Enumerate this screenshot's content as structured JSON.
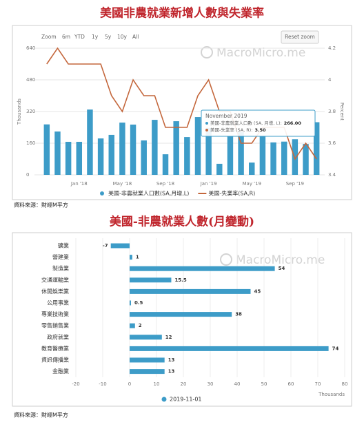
{
  "chart_data": [
    {
      "type": "combo",
      "title": "美國非農就業新增人數與失業率",
      "zoom_buttons": [
        "Zoom",
        "6m",
        "YTD",
        "1y",
        "5y",
        "10y",
        "All"
      ],
      "reset_button": "Reset zoom",
      "watermark": "MacroMicro.me",
      "categories": [
        null,
        null,
        null,
        "Jan '18",
        null,
        null,
        null,
        "May '18",
        null,
        null,
        null,
        "Sep '18",
        null,
        null,
        null,
        "Jan '19",
        null,
        null,
        null,
        "May '19",
        null,
        null,
        null,
        "Sep '19",
        null,
        null
      ],
      "ylabel": "Thousands",
      "y2label": "Percent",
      "ylim": [
        0,
        640
      ],
      "yticks": [
        0,
        160,
        320,
        480,
        640
      ],
      "y2lim": [
        3.4,
        4.2
      ],
      "y2ticks": [
        3.4,
        3.6,
        3.8,
        4,
        4.2
      ],
      "series": [
        {
          "name": "美國-非農就業人口數(SA,月增,L)",
          "type": "bar",
          "color": "#3d9cc8",
          "values": [
            255,
            219,
            167,
            167,
            330,
            184,
            202,
            264,
            254,
            174,
            278,
            104,
            271,
            191,
            292,
            237,
            56,
            196,
            216,
            62,
            193,
            164,
            168,
            180,
            156,
            266
          ]
        },
        {
          "name": "美國-失業率(SA,R)",
          "type": "line",
          "axis": "y2",
          "color": "#c4673c",
          "values": [
            4.1,
            4.2,
            4.1,
            4.1,
            4.1,
            4.1,
            3.9,
            3.8,
            4.0,
            3.9,
            3.9,
            3.7,
            3.7,
            3.7,
            3.9,
            4.0,
            3.8,
            3.8,
            3.6,
            3.6,
            3.7,
            3.7,
            3.7,
            3.5,
            3.6,
            3.5
          ]
        }
      ],
      "tooltip": {
        "title": "November 2019",
        "lines": [
          {
            "label": "美國-非農就業人口數 (SA, 月增, L):",
            "value": "266.00"
          },
          {
            "label": "美國-失業率 (SA, R):",
            "value": "3.50"
          }
        ]
      },
      "source": "資料來源：財經M平方"
    },
    {
      "type": "barh",
      "title": "美國-非農就業人數(月變動)",
      "watermark": "MacroMicro.me",
      "categories": [
        "礦業",
        "營建業",
        "製造業",
        "交通運輸業",
        "休閒娛樂業",
        "公用事業",
        "專業技術業",
        "零售銷售業",
        "政府就業",
        "教育醫療業",
        "資訊傳播業",
        "金融業"
      ],
      "values": [
        -7,
        1,
        54,
        15.5,
        45,
        0.5,
        38,
        2,
        12,
        74,
        13,
        13
      ],
      "color": "#3d9cc8",
      "series_name": "2019-11-01",
      "xlabel": "Thousands",
      "xlim": [
        -20,
        80
      ],
      "xticks": [
        -20,
        -10,
        0,
        10,
        20,
        30,
        40,
        50,
        60,
        70,
        80
      ],
      "grid": true,
      "source": "資料來源：財經M平方"
    }
  ]
}
